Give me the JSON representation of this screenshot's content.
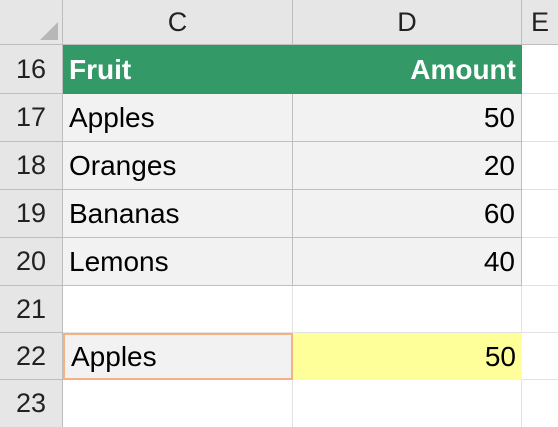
{
  "columns": {
    "c": "C",
    "d": "D",
    "e": "E"
  },
  "rows": {
    "r16": "16",
    "r17": "17",
    "r18": "18",
    "r19": "19",
    "r20": "20",
    "r21": "21",
    "r22": "22",
    "r23": "23"
  },
  "table": {
    "header": {
      "fruit": "Fruit",
      "amount": "Amount"
    },
    "rows": [
      {
        "fruit": "Apples",
        "amount": "50"
      },
      {
        "fruit": "Oranges",
        "amount": "20"
      },
      {
        "fruit": "Bananas",
        "amount": "60"
      },
      {
        "fruit": "Lemons",
        "amount": "40"
      }
    ]
  },
  "lookup": {
    "input": "Apples",
    "result": "50"
  },
  "colors": {
    "header_fill": "#339966",
    "header_text": "#ffffff",
    "table_fill": "#f2f2f2",
    "lookup_border": "#f4b183",
    "result_fill": "#ffff99",
    "grid_header_fill": "#e6e6e6"
  }
}
